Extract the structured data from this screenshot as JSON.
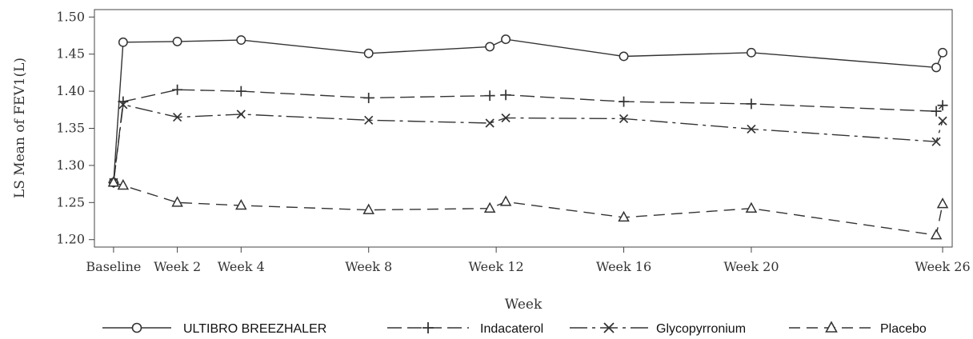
{
  "chart_data": {
    "type": "line",
    "title": "",
    "xlabel": "Week",
    "ylabel": "LS Mean of FEV1(L)",
    "x_ticks": [
      {
        "label": "Baseline",
        "week": 0
      },
      {
        "label": "Week 2",
        "week": 2
      },
      {
        "label": "Week 4",
        "week": 4
      },
      {
        "label": "Week 8",
        "week": 8
      },
      {
        "label": "Week 12",
        "week": 12
      },
      {
        "label": "Week 16",
        "week": 16
      },
      {
        "label": "Week 20",
        "week": 20
      },
      {
        "label": "Week 26",
        "week": 26
      }
    ],
    "y_ticks": [
      "1.20",
      "1.25",
      "1.30",
      "1.35",
      "1.40",
      "1.45",
      "1.50"
    ],
    "xlim": [
      -0.6,
      26.3
    ],
    "ylim": [
      1.19,
      1.51
    ],
    "grid": false,
    "legend_position": "bottom",
    "series": [
      {
        "name": "ULTIBRO BREEZHALER",
        "marker": "circle",
        "dash": "solid",
        "points": [
          [
            0,
            1.277
          ],
          [
            0.3,
            1.466
          ],
          [
            2,
            1.467
          ],
          [
            4,
            1.469
          ],
          [
            8,
            1.451
          ],
          [
            11.8,
            1.46
          ],
          [
            12.3,
            1.47
          ],
          [
            16,
            1.447
          ],
          [
            20,
            1.452
          ],
          [
            25.8,
            1.432
          ],
          [
            26,
            1.452
          ]
        ]
      },
      {
        "name": "Indacaterol",
        "marker": "plus",
        "dash": "longdash",
        "points": [
          [
            0,
            1.277
          ],
          [
            0.3,
            1.386
          ],
          [
            2,
            1.402
          ],
          [
            4,
            1.4
          ],
          [
            8,
            1.391
          ],
          [
            11.8,
            1.394
          ],
          [
            12.3,
            1.395
          ],
          [
            16,
            1.386
          ],
          [
            20,
            1.383
          ],
          [
            25.8,
            1.373
          ],
          [
            26,
            1.381
          ]
        ]
      },
      {
        "name": "Glycopyrronium",
        "marker": "x",
        "dash": "dashdot",
        "points": [
          [
            0,
            1.277
          ],
          [
            0.3,
            1.382
          ],
          [
            2,
            1.365
          ],
          [
            4,
            1.369
          ],
          [
            8,
            1.361
          ],
          [
            11.8,
            1.357
          ],
          [
            12.3,
            1.364
          ],
          [
            16,
            1.363
          ],
          [
            20,
            1.349
          ],
          [
            25.8,
            1.332
          ],
          [
            26,
            1.36
          ]
        ]
      },
      {
        "name": "Placebo",
        "marker": "triangle",
        "dash": "dash",
        "points": [
          [
            0,
            1.277
          ],
          [
            0.3,
            1.273
          ],
          [
            2,
            1.25
          ],
          [
            4,
            1.246
          ],
          [
            8,
            1.24
          ],
          [
            11.8,
            1.242
          ],
          [
            12.3,
            1.251
          ],
          [
            16,
            1.23
          ],
          [
            20,
            1.242
          ],
          [
            25.8,
            1.206
          ],
          [
            26,
            1.248
          ]
        ]
      }
    ]
  }
}
